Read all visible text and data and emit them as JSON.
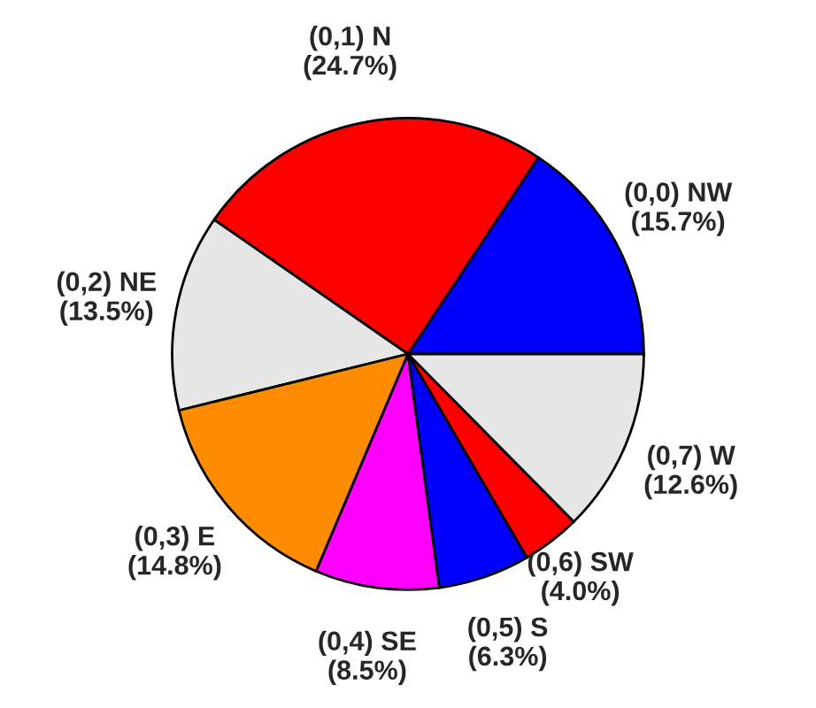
{
  "chart_data": {
    "type": "pie",
    "categories": [
      "(0,0) NW",
      "(0,1) N",
      "(0,2) NE",
      "(0,3) E",
      "(0,4) SE",
      "(0,5) S",
      "(0,6) SW",
      "(0,7) W"
    ],
    "values": [
      15.7,
      24.7,
      13.5,
      14.8,
      8.5,
      6.3,
      4.0,
      12.6
    ],
    "value_labels": [
      "(15.7%)",
      "(24.7%)",
      "(13.5%)",
      "(14.8%)",
      "(8.5%)",
      "(6.3%)",
      "(4.0%)",
      "(12.6%)"
    ],
    "colors": [
      "#0000ff",
      "#ff0000",
      "#e6e6e6",
      "#ff8c00",
      "#ff00ff",
      "#0000ff",
      "#ff0000",
      "#e6e6e6"
    ],
    "legend": false
  }
}
